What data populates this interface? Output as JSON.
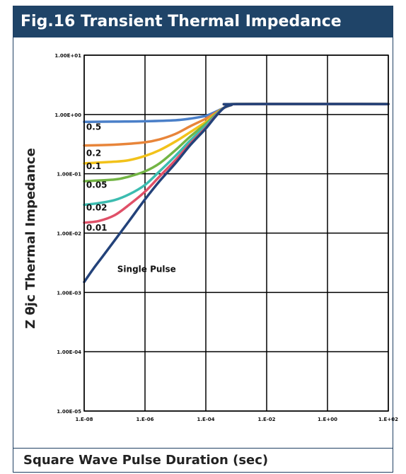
{
  "header": {
    "title": "Fig.16 Transient Thermal Impedance"
  },
  "chart_data": {
    "type": "line",
    "title": "Fig.16 Transient Thermal Impedance",
    "xlabel": "Square Wave Pulse Duration (sec)",
    "ylabel": "Z θjc Thermal Impedance",
    "x_scale": "log",
    "y_scale": "log",
    "xlim": [
      1e-08,
      100
    ],
    "ylim": [
      1e-05,
      10
    ],
    "grid": true,
    "x_ticks": [
      {
        "value": 1e-08,
        "label": "1.E-08"
      },
      {
        "value": 1e-06,
        "label": "1.E-06"
      },
      {
        "value": 0.0001,
        "label": "1.E-04"
      },
      {
        "value": 0.01,
        "label": "1.E-02"
      },
      {
        "value": 1,
        "label": "1.E+00"
      },
      {
        "value": 100,
        "label": "1.E+02"
      }
    ],
    "y_ticks": [
      {
        "value": 10,
        "label": "1.00E+01"
      },
      {
        "value": 1,
        "label": "1.00E+00"
      },
      {
        "value": 0.1,
        "label": "1.00E-01"
      },
      {
        "value": 0.01,
        "label": "1.00E-02"
      },
      {
        "value": 0.001,
        "label": "1.00E-03"
      },
      {
        "value": 0.0001,
        "label": "1.00E-04"
      },
      {
        "value": 1e-05,
        "label": "1.00E-05"
      }
    ],
    "series": [
      {
        "name": "0.5",
        "color": "#4a7fc8",
        "label_at": [
          1.05e-08,
          0.55
        ],
        "points": [
          [
            1e-08,
            0.75
          ],
          [
            1e-07,
            0.76
          ],
          [
            1e-06,
            0.77
          ],
          [
            1e-05,
            0.8
          ],
          [
            3e-05,
            0.85
          ],
          [
            0.0001,
            0.95
          ],
          [
            0.0002,
            1.1
          ],
          [
            0.0004,
            1.3
          ],
          [
            0.0007,
            1.45
          ],
          [
            0.001,
            1.5
          ],
          [
            100,
            1.5
          ]
        ]
      },
      {
        "name": "0.2",
        "color": "#e8853a",
        "label_at": [
          1.05e-08,
          0.2
        ],
        "points": [
          [
            1e-08,
            0.3
          ],
          [
            1e-07,
            0.31
          ],
          [
            1e-06,
            0.34
          ],
          [
            3e-06,
            0.38
          ],
          [
            1e-05,
            0.47
          ],
          [
            3e-05,
            0.63
          ],
          [
            0.0001,
            0.85
          ],
          [
            0.0002,
            1.05
          ],
          [
            0.0004,
            1.3
          ],
          [
            0.0007,
            1.45
          ],
          [
            0.001,
            1.5
          ],
          [
            100,
            1.5
          ]
        ]
      },
      {
        "name": "0.1",
        "color": "#f2c21a",
        "label_at": [
          1.05e-08,
          0.12
        ],
        "points": [
          [
            1e-08,
            0.15
          ],
          [
            1e-07,
            0.16
          ],
          [
            3e-07,
            0.17
          ],
          [
            1e-06,
            0.2
          ],
          [
            3e-06,
            0.25
          ],
          [
            1e-05,
            0.35
          ],
          [
            3e-05,
            0.5
          ],
          [
            0.0001,
            0.75
          ],
          [
            0.0002,
            1.0
          ],
          [
            0.0004,
            1.3
          ],
          [
            0.0007,
            1.45
          ],
          [
            0.001,
            1.5
          ],
          [
            100,
            1.5
          ]
        ]
      },
      {
        "name": "0.05",
        "color": "#73b545",
        "label_at": [
          1.05e-08,
          0.058
        ],
        "points": [
          [
            1e-08,
            0.075
          ],
          [
            1e-07,
            0.08
          ],
          [
            3e-07,
            0.09
          ],
          [
            1e-06,
            0.11
          ],
          [
            3e-06,
            0.15
          ],
          [
            1e-05,
            0.25
          ],
          [
            3e-05,
            0.42
          ],
          [
            0.0001,
            0.7
          ],
          [
            0.0002,
            0.98
          ],
          [
            0.0004,
            1.3
          ],
          [
            0.0007,
            1.45
          ],
          [
            0.001,
            1.5
          ],
          [
            100,
            1.5
          ]
        ]
      },
      {
        "name": "0.02",
        "color": "#3cbcb0",
        "label_at": [
          1.05e-08,
          0.024
        ],
        "points": [
          [
            1e-08,
            0.03
          ],
          [
            3e-08,
            0.032
          ],
          [
            1e-07,
            0.036
          ],
          [
            3e-07,
            0.045
          ],
          [
            1e-06,
            0.065
          ],
          [
            3e-06,
            0.11
          ],
          [
            1e-05,
            0.2
          ],
          [
            3e-05,
            0.36
          ],
          [
            0.0001,
            0.65
          ],
          [
            0.0002,
            0.95
          ],
          [
            0.0004,
            1.3
          ],
          [
            0.0007,
            1.45
          ],
          [
            0.001,
            1.5
          ],
          [
            100,
            1.5
          ]
        ]
      },
      {
        "name": "0.01",
        "color": "#e05068",
        "label_at": [
          1.05e-08,
          0.011
        ],
        "points": [
          [
            1e-08,
            0.015
          ],
          [
            3e-08,
            0.016
          ],
          [
            1e-07,
            0.02
          ],
          [
            3e-07,
            0.03
          ],
          [
            1e-06,
            0.05
          ],
          [
            3e-06,
            0.09
          ],
          [
            1e-05,
            0.17
          ],
          [
            3e-05,
            0.32
          ],
          [
            0.0001,
            0.6
          ],
          [
            0.0002,
            0.92
          ],
          [
            0.0004,
            1.3
          ],
          [
            0.0007,
            1.45
          ],
          [
            0.001,
            1.5
          ],
          [
            100,
            1.5
          ]
        ]
      },
      {
        "name": "Single Pulse",
        "color": "#23427a",
        "label_at": [
          1.1e-07,
          0.0022
        ],
        "points": [
          [
            1e-08,
            0.0015
          ],
          [
            2e-08,
            0.0025
          ],
          [
            4e-08,
            0.004
          ],
          [
            1e-07,
            0.0075
          ],
          [
            3e-07,
            0.016
          ],
          [
            1e-06,
            0.037
          ],
          [
            3e-06,
            0.075
          ],
          [
            1e-05,
            0.15
          ],
          [
            3e-05,
            0.3
          ],
          [
            0.0001,
            0.58
          ],
          [
            0.0002,
            0.9
          ],
          [
            0.0004,
            1.3
          ],
          [
            0.0007,
            1.45
          ],
          [
            0.001,
            1.5
          ],
          [
            100,
            1.5
          ]
        ]
      }
    ]
  }
}
